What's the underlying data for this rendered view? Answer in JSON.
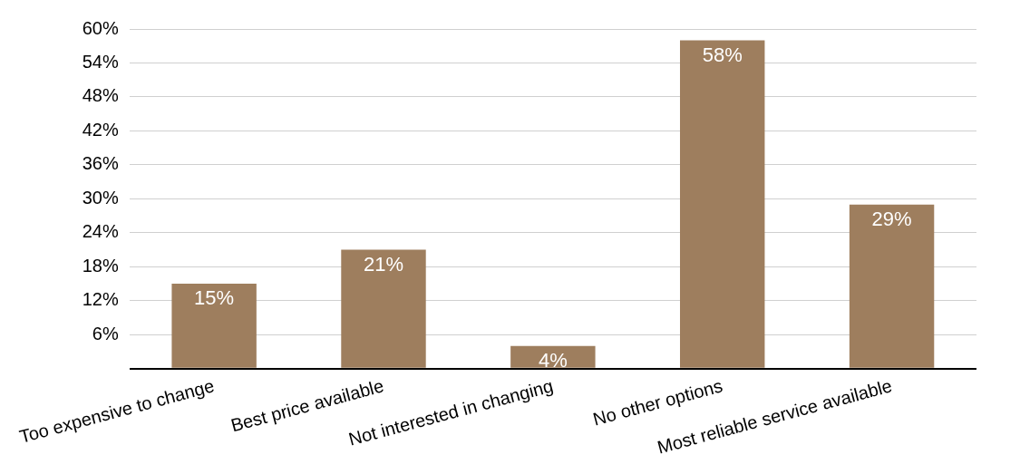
{
  "chart_data": {
    "type": "bar",
    "categories": [
      "Too expensive to change",
      "Best price available",
      "Not interested in changing",
      "No other options",
      "Most reliable service available"
    ],
    "values": [
      15,
      21,
      4,
      58,
      29
    ],
    "color": "#9e7e5e",
    "ylim": [
      0,
      60
    ],
    "yticks": [
      {
        "value": 0,
        "label": null
      },
      {
        "value": 6,
        "label": "6%"
      },
      {
        "value": 12,
        "label": "12%"
      },
      {
        "value": 18,
        "label": "18%"
      },
      {
        "value": 24,
        "label": "24%"
      },
      {
        "value": 30,
        "label": "30%"
      },
      {
        "value": 36,
        "label": "36%"
      },
      {
        "value": 42,
        "label": "42%"
      },
      {
        "value": 48,
        "label": "48%"
      },
      {
        "value": 54,
        "label": "54%"
      },
      {
        "value": 60,
        "label": "60%"
      }
    ],
    "value_labels": [
      "15%",
      "21%",
      "4%",
      "58%",
      "29%"
    ],
    "grid": "y",
    "legend": false
  }
}
